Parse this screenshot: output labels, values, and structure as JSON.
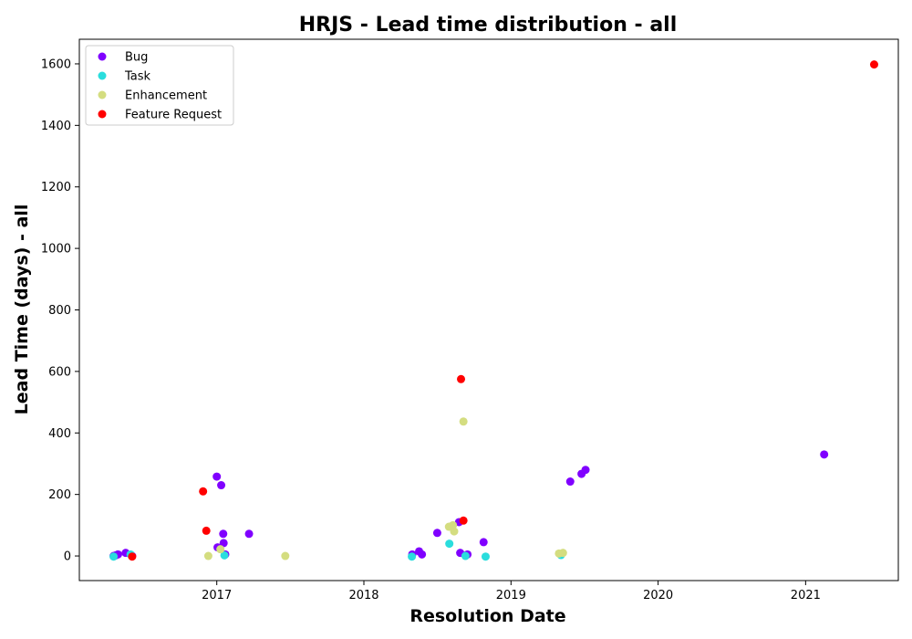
{
  "chart_data": {
    "type": "scatter",
    "title": "HRJS - Lead time distribution - all",
    "xlabel": "Resolution Date",
    "ylabel": "Lead Time (days) - all",
    "x_ticks": [
      "2017",
      "2018",
      "2019",
      "2020",
      "2021"
    ],
    "y_ticks": [
      0,
      200,
      400,
      600,
      800,
      1000,
      1200,
      1400,
      1600
    ],
    "x_range": [
      "2016-01-26",
      "2021-08-19"
    ],
    "ylim": [
      -80,
      1680
    ],
    "grid": false,
    "legend_position": "top-left",
    "series": [
      {
        "name": "Bug",
        "color": "#8000ff",
        "points": [
          {
            "x": "2016-04-20",
            "y": 0
          },
          {
            "x": "2016-04-25",
            "y": 2
          },
          {
            "x": "2016-05-01",
            "y": 5
          },
          {
            "x": "2016-05-20",
            "y": 10
          },
          {
            "x": "2016-06-05",
            "y": 0
          },
          {
            "x": "2017-01-01",
            "y": 258
          },
          {
            "x": "2017-01-03",
            "y": 28
          },
          {
            "x": "2017-01-12",
            "y": 230
          },
          {
            "x": "2017-01-17",
            "y": 72
          },
          {
            "x": "2017-01-18",
            "y": 42
          },
          {
            "x": "2017-01-22",
            "y": 5
          },
          {
            "x": "2017-03-22",
            "y": 72
          },
          {
            "x": "2018-05-01",
            "y": 5
          },
          {
            "x": "2018-05-18",
            "y": 15
          },
          {
            "x": "2018-05-25",
            "y": 5
          },
          {
            "x": "2018-07-02",
            "y": 75
          },
          {
            "x": "2018-08-25",
            "y": 110
          },
          {
            "x": "2018-08-28",
            "y": 10
          },
          {
            "x": "2018-09-15",
            "y": 5
          },
          {
            "x": "2018-10-25",
            "y": 45
          },
          {
            "x": "2019-05-28",
            "y": 242
          },
          {
            "x": "2019-06-25",
            "y": 267
          },
          {
            "x": "2019-07-05",
            "y": 280
          },
          {
            "x": "2021-02-16",
            "y": 330
          }
        ]
      },
      {
        "name": "Task",
        "color": "#2adddd",
        "points": [
          {
            "x": "2016-04-20",
            "y": -2
          },
          {
            "x": "2016-06-01",
            "y": 5
          },
          {
            "x": "2017-01-20",
            "y": 2
          },
          {
            "x": "2018-04-30",
            "y": -2
          },
          {
            "x": "2018-08-01",
            "y": 40
          },
          {
            "x": "2018-09-10",
            "y": 0
          },
          {
            "x": "2018-10-30",
            "y": -2
          },
          {
            "x": "2019-05-05",
            "y": 3
          }
        ]
      },
      {
        "name": "Enhancement",
        "color": "#d4dd80",
        "points": [
          {
            "x": "2016-12-11",
            "y": 0
          },
          {
            "x": "2017-01-10",
            "y": 22
          },
          {
            "x": "2017-06-20",
            "y": 0
          },
          {
            "x": "2018-07-31",
            "y": 95
          },
          {
            "x": "2018-08-10",
            "y": 100
          },
          {
            "x": "2018-08-13",
            "y": 80
          },
          {
            "x": "2018-09-05",
            "y": 437
          },
          {
            "x": "2019-04-30",
            "y": 8
          },
          {
            "x": "2019-05-10",
            "y": 10
          }
        ]
      },
      {
        "name": "Feature Request",
        "color": "#ff0000",
        "points": [
          {
            "x": "2016-06-05",
            "y": -2
          },
          {
            "x": "2016-11-28",
            "y": 210
          },
          {
            "x": "2016-12-06",
            "y": 82
          },
          {
            "x": "2018-08-30",
            "y": 575
          },
          {
            "x": "2018-09-05",
            "y": 115
          },
          {
            "x": "2021-06-20",
            "y": 1598
          }
        ]
      }
    ]
  }
}
